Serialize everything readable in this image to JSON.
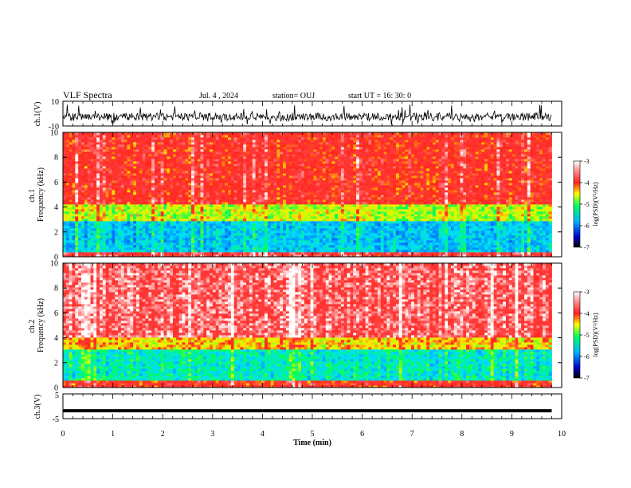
{
  "header": {
    "title": "VLF  Spectra",
    "date": "Jul.  4  , 2024",
    "station": "station= OUJ",
    "start_ut": "start  UT  =   16: 30: 0"
  },
  "colors": {
    "background": "#ffffff",
    "axis": "#000000",
    "trace": "#000000"
  },
  "chart_data": [
    {
      "type": "line",
      "panel": "ch1-waveform",
      "ylabel": "ch.1(V)",
      "ylim": [
        -10,
        10
      ],
      "yticks": [
        "10",
        "-10"
      ],
      "xlim": [
        0,
        10
      ],
      "description_of_series": "noisy waveform spanning roughly -8 to 8 V over 0 to 9.8 min"
    },
    {
      "type": "heatmap",
      "panel": "ch1-spectrogram",
      "ylabel": "ch.1\nFrequency (kHz)",
      "ylim": [
        0,
        10
      ],
      "yticks": [
        "0",
        "2",
        "4",
        "6",
        "8",
        "10"
      ],
      "xlim": [
        0,
        10
      ],
      "data_extent_min": [
        0,
        9.8
      ],
      "colorbar": {
        "label": "log(PSD)(V²/Hz)",
        "range": [
          -7,
          -3
        ],
        "ticks": [
          "-3",
          "-4",
          "-5",
          "-6",
          "-7"
        ]
      },
      "bands": [
        {
          "from_khz": 0,
          "to_khz": 0.4,
          "level": -3.6
        },
        {
          "from_khz": 0.4,
          "to_khz": 2.8,
          "level": -5.6
        },
        {
          "from_khz": 2.8,
          "to_khz": 4.2,
          "level": -4.6
        },
        {
          "from_khz": 4.2,
          "to_khz": 10,
          "level": -3.8
        }
      ]
    },
    {
      "type": "heatmap",
      "panel": "ch2-spectrogram",
      "ylabel": "ch.2\nFrequency (kHz)",
      "ylim": [
        0,
        10
      ],
      "yticks": [
        "0",
        "2",
        "4",
        "6",
        "8",
        "10"
      ],
      "xlim": [
        0,
        10
      ],
      "data_extent_min": [
        0,
        9.8
      ],
      "colorbar": {
        "label": "log(PSD)(V²/Hz)",
        "range": [
          -7,
          -3
        ],
        "ticks": [
          "-3",
          "-4",
          "-5",
          "-6",
          "-7"
        ]
      },
      "bands": [
        {
          "from_khz": 0,
          "to_khz": 0.5,
          "level": -3.8
        },
        {
          "from_khz": 0.5,
          "to_khz": 3.0,
          "level": -5.3
        },
        {
          "from_khz": 3.0,
          "to_khz": 4.0,
          "level": -4.3
        },
        {
          "from_khz": 4.0,
          "to_khz": 10,
          "level": -3.4
        }
      ]
    },
    {
      "type": "line",
      "panel": "ch3-waveform",
      "ylabel": "ch.3(V)",
      "ylim": [
        -5,
        5
      ],
      "yticks": [
        "5",
        "-5"
      ],
      "xlim": [
        0,
        10
      ],
      "x": [
        0,
        9.8
      ],
      "y": [
        -1.8,
        -1.8
      ]
    }
  ],
  "xaxis": {
    "label": "Time  (min)",
    "ticks": [
      "0",
      "1",
      "2",
      "3",
      "4",
      "5",
      "6",
      "7",
      "8",
      "9",
      "10"
    ]
  }
}
